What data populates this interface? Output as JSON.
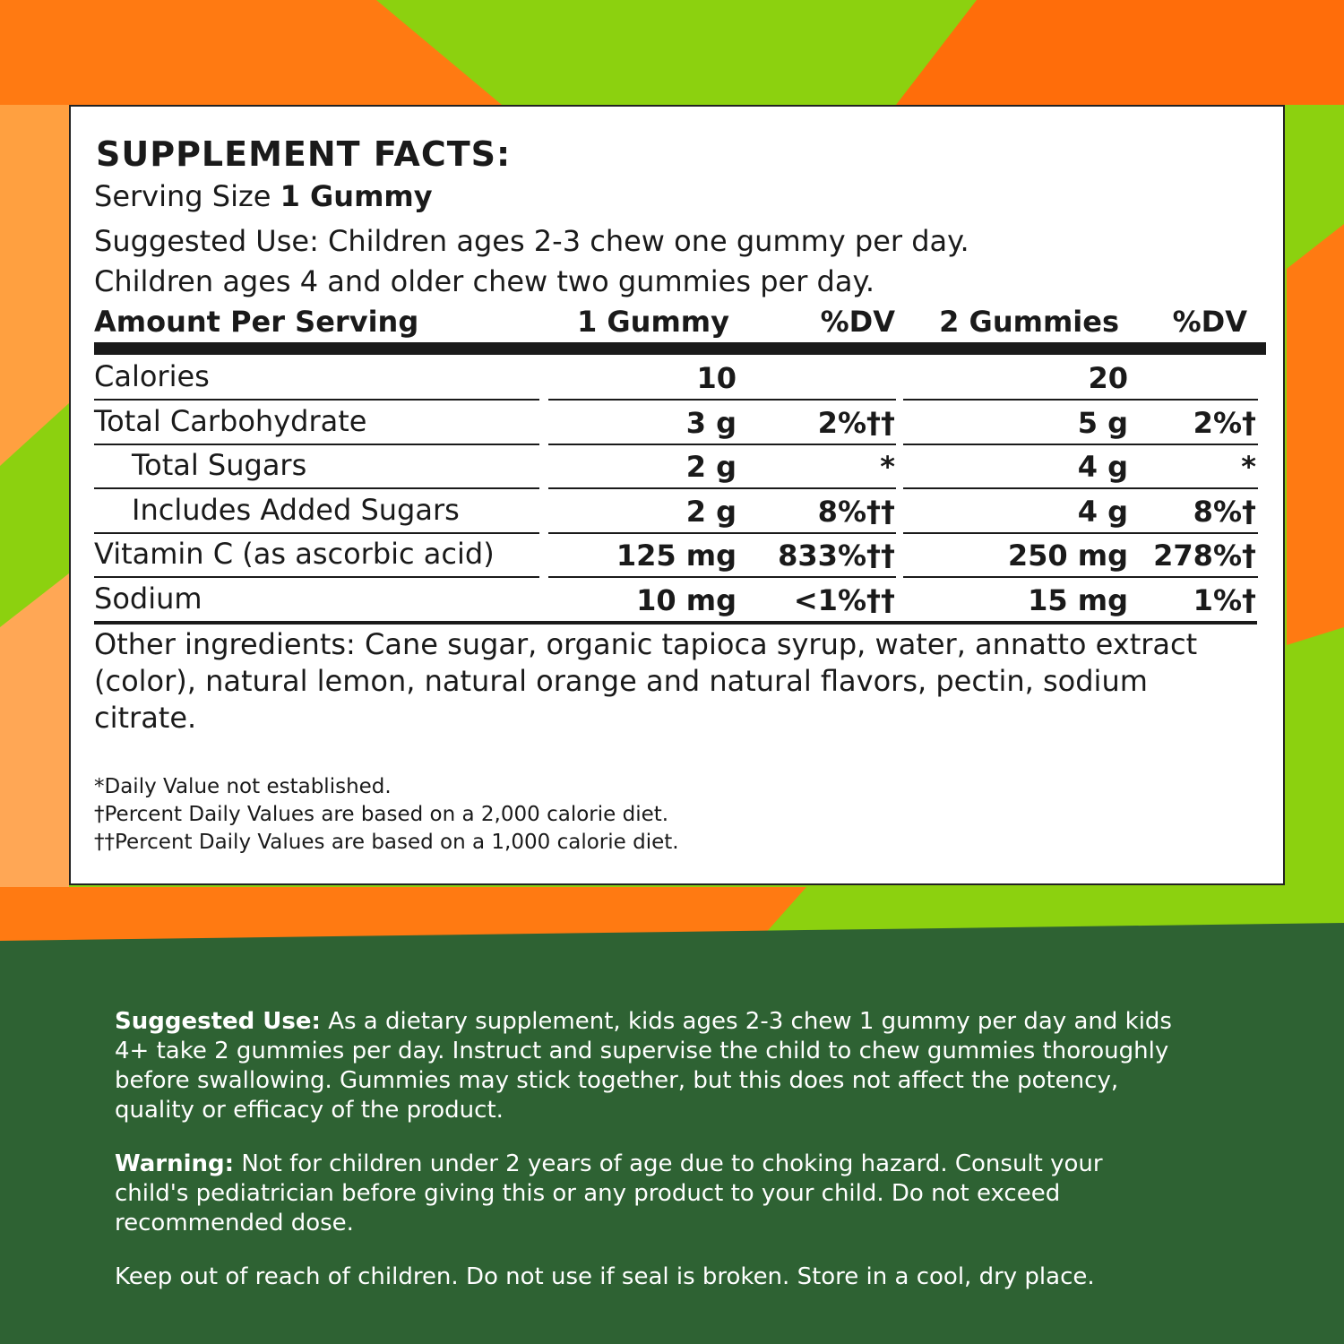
{
  "facts": {
    "title": "SUPPLEMENT FACTS:",
    "serving_label": "Serving Size",
    "serving_value": "1 Gummy",
    "suggested_lines": [
      "Suggested Use: Children ages 2-3 chew one gummy per day.",
      "Children ages 4 and older chew two gummies per day."
    ]
  },
  "table": {
    "header": [
      "Amount Per Serving",
      "1 Gummy",
      "%DV",
      "2 Gummies",
      "%DV"
    ],
    "rows": [
      {
        "name": "Calories",
        "amount1": "10",
        "amount2": "20"
      },
      {
        "name": "Total Carbohydrate",
        "amount1": "3 g",
        "dv1": "2%††",
        "amount2": "5 g",
        "dv2": "2%†"
      },
      {
        "name": "Total Sugars",
        "indent": true,
        "amount1": "2 g",
        "dv1": "*",
        "amount2": "4 g",
        "dv2": "*"
      },
      {
        "name": "Includes Added Sugars",
        "indent": true,
        "amount1": "2 g",
        "dv1": "8%††",
        "amount2": "4 g",
        "dv2": "8%†"
      },
      {
        "name": "Vitamin C (as ascorbic acid)",
        "amount1": "125 mg",
        "dv1": "833%††",
        "amount2": "250 mg",
        "dv2": "278%†"
      },
      {
        "name": "Sodium",
        "amount1": "10 mg",
        "dv1": "<1%††",
        "amount2": "15 mg",
        "dv2": "1%†"
      }
    ]
  },
  "other_ingredients": "Other ingredients: Cane sugar, organic tapioca syrup, water, annatto extract (color), natural lemon, natural orange and natural flavors, pectin, sodium citrate.",
  "footnotes": [
    "*Daily Value not established.",
    "†Percent Daily Values are based on a 2,000 calorie diet.",
    "††Percent Daily Values are based on a 1,000 calorie diet."
  ],
  "directions": [
    {
      "label": "Suggested Use:",
      "text": "As a dietary supplement, kids ages 2-3 chew 1 gummy per day and kids 4+ take 2 gummies per day. Instruct and supervise the child to chew gummies thoroughly before swallowing. Gummies may stick together, but this does not affect the potency, quality or efficacy of the product."
    },
    {
      "label": "Warning:",
      "text": "Not for children under 2 years of age due to choking hazard. Consult your child's pediatrician before giving this or any product to your child. Do not exceed recommended dose."
    },
    {
      "text": "Keep out of reach of children. Do not use if seal is broken. Store in a cool, dry place."
    }
  ]
}
